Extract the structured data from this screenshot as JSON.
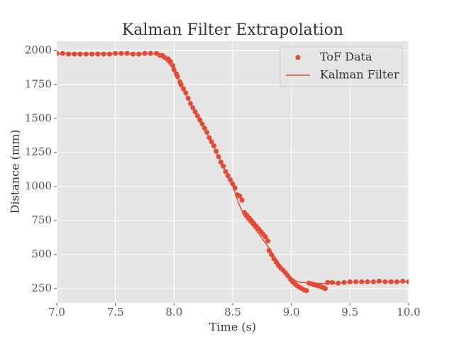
{
  "chart_data": {
    "type": "scatter",
    "title": "Kalman Filter Extrapolation",
    "x_label": "Time (s)",
    "y_label": "Distance (mm)",
    "xlim": [
      7.0,
      10.0
    ],
    "ylim": [
      145,
      2070
    ],
    "xticks": [
      {
        "value": 7,
        "label": "7.0"
      },
      7.5,
      {
        "value": 8,
        "label": "8.0"
      },
      8.5,
      {
        "value": 9,
        "label": "9.0"
      },
      9.5,
      {
        "value": 10,
        "label": "10.0"
      }
    ],
    "yticks": [
      250,
      500,
      750,
      1000,
      1250,
      1500,
      1750,
      2000
    ],
    "grid": true,
    "legend": "upper-right",
    "series": [
      {
        "name": "ToF Data",
        "mode": "markers",
        "color": "#e24a33",
        "x": [
          7.0,
          7.05,
          7.1,
          7.15,
          7.2,
          7.25,
          7.3,
          7.35,
          7.4,
          7.45,
          7.5,
          7.55,
          7.6,
          7.65,
          7.7,
          7.75,
          7.8,
          7.85,
          7.88,
          7.9,
          7.92,
          7.95,
          7.97,
          7.99,
          8.0,
          8.02,
          8.03,
          8.05,
          8.06,
          8.08,
          8.1,
          8.12,
          8.14,
          8.16,
          8.18,
          8.2,
          8.22,
          8.24,
          8.26,
          8.28,
          8.3,
          8.32,
          8.34,
          8.36,
          8.38,
          8.4,
          8.42,
          8.44,
          8.46,
          8.48,
          8.5,
          8.52,
          8.54,
          8.56,
          8.58,
          8.6,
          8.62,
          8.64,
          8.66,
          8.68,
          8.7,
          8.72,
          8.74,
          8.76,
          8.78,
          8.8,
          8.81,
          8.83,
          8.85,
          8.87,
          8.89,
          8.91,
          8.93,
          8.95,
          8.97,
          8.99,
          9.01,
          9.03,
          9.05,
          9.07,
          9.09,
          9.11,
          9.13,
          9.15,
          9.17,
          9.19,
          9.21,
          9.23,
          9.25,
          9.27,
          9.29,
          9.31,
          9.35,
          9.4,
          9.45,
          9.5,
          9.55,
          9.6,
          9.65,
          9.7,
          9.75,
          9.8,
          9.85,
          9.9,
          9.95,
          10.0
        ],
        "values": [
          1980,
          1980,
          1975,
          1975,
          1975,
          1975,
          1975,
          1975,
          1975,
          1975,
          1980,
          1980,
          1980,
          1975,
          1975,
          1980,
          1980,
          1980,
          1965,
          1965,
          1950,
          1940,
          1920,
          1890,
          1860,
          1830,
          1810,
          1770,
          1750,
          1720,
          1690,
          1650,
          1610,
          1580,
          1550,
          1520,
          1490,
          1460,
          1430,
          1400,
          1360,
          1330,
          1300,
          1260,
          1220,
          1180,
          1150,
          1110,
          1080,
          1050,
          1020,
          990,
          940,
          930,
          900,
          810,
          790,
          770,
          750,
          730,
          710,
          690,
          670,
          650,
          630,
          600,
          530,
          500,
          470,
          445,
          420,
          400,
          385,
          365,
          345,
          320,
          300,
          285,
          270,
          260,
          250,
          240,
          235,
          290,
          285,
          280,
          275,
          270,
          265,
          258,
          250,
          295,
          295,
          290,
          295,
          300,
          300,
          300,
          300,
          300,
          305,
          300,
          300,
          300,
          305,
          300
        ]
      },
      {
        "name": "Kalman Filter",
        "mode": "lines",
        "color": "#e24a33",
        "x": [
          7.0,
          7.85,
          7.9,
          8.0,
          8.1,
          8.2,
          8.3,
          8.4,
          8.5,
          8.55,
          8.6,
          8.7,
          8.8,
          8.9,
          9.0,
          9.05,
          9.1,
          9.2,
          9.3,
          9.4,
          9.5,
          9.7,
          10.0
        ],
        "values": [
          1978,
          1978,
          1960,
          1860,
          1680,
          1520,
          1360,
          1180,
          1010,
          880,
          780,
          680,
          560,
          430,
          330,
          300,
          295,
          290,
          285,
          290,
          297,
          300,
          300
        ]
      }
    ]
  }
}
